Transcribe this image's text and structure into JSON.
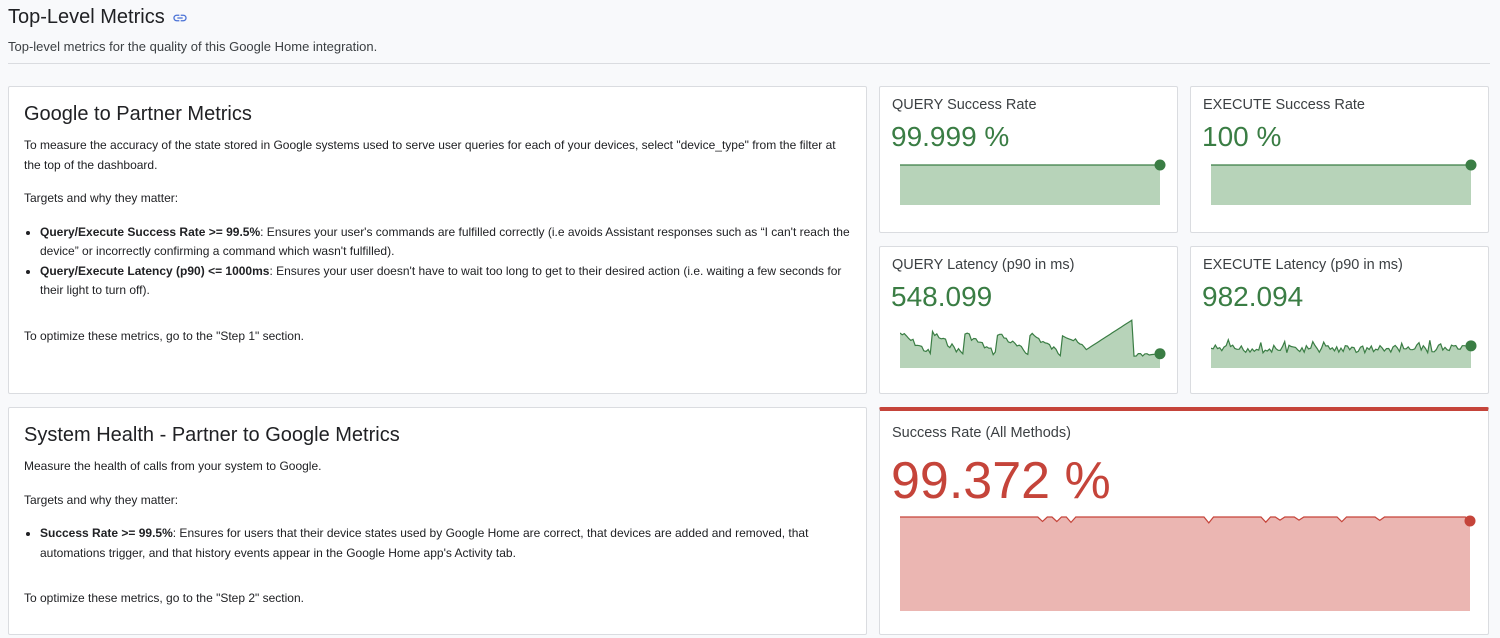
{
  "header": {
    "title": "Top-Level Metrics",
    "subtitle": "Top-level metrics for the quality of this Google Home integration.",
    "link_icon": "link-icon"
  },
  "colors": {
    "green": "#3a7d44",
    "green_fill": "#b7d3b9",
    "red": "#c5443a",
    "red_fill": "#ebb6b2",
    "link": "#4a72d6"
  },
  "g2p": {
    "title": "Google to Partner Metrics",
    "intro": "To measure the accuracy of the state stored in Google systems used to serve user queries for each of your devices, select \"device_type\" from the filter at the top of the dashboard.",
    "targets": "Targets and why they matter:",
    "items": [
      {
        "bold": "Query/Execute Success Rate >= 99.5%",
        "text": ": Ensures your user's commands are fulfilled correctly (i.e avoids Assistant responses such as “I can't reach the device” or incorrectly confirming a command which wasn't fulfilled)."
      },
      {
        "bold": "Query/Execute Latency (p90) <= 1000ms",
        "text": ": Ensures your user doesn't have to wait too long to get to their desired action (i.e. waiting a few seconds for their light to turn off)."
      }
    ],
    "outro": "To optimize these metrics, go to the \"Step 1\" section."
  },
  "health": {
    "title": "System Health - Partner to Google Metrics",
    "intro": "Measure the health of calls from your system to Google.",
    "targets": "Targets and why they matter:",
    "items": [
      {
        "bold": "Success Rate >= 99.5%",
        "text": ": Ensures for users that their device states used by Google Home are correct, that devices are added and removed, that automations trigger, and that history events appear in the Google Home app's Activity tab."
      }
    ],
    "outro": "To optimize these metrics, go to the \"Step 2\" section."
  },
  "metrics": {
    "query_success": {
      "label": "QUERY Success Rate",
      "value": "99.999 %"
    },
    "execute_success": {
      "label": "EXECUTE Success Rate",
      "value": "100 %"
    },
    "query_latency": {
      "label": "QUERY Latency (p90 in ms)",
      "value": "548.099"
    },
    "execute_latency": {
      "label": "EXECUTE Latency (p90 in ms)",
      "value": "982.094"
    },
    "all_success": {
      "label": "Success Rate (All Methods)",
      "value": "99.372 %",
      "status": "below-target"
    }
  }
}
